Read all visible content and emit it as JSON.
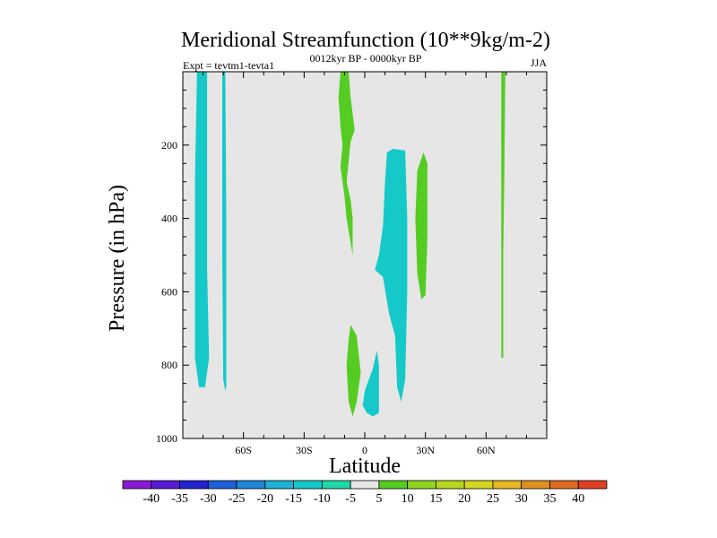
{
  "chart_data": {
    "type": "contour",
    "title": "Meridional Streamfunction (10**9kg/m-2)",
    "left_label": "Expt = tevtm1-tevta1",
    "center_label": "0012kyr BP - 0000kyr BP",
    "right_label": "JJA",
    "xlabel": "Latitude",
    "ylabel": "Pressure (in hPa)",
    "xlim": [
      -90,
      90
    ],
    "ylim": [
      1000,
      0
    ],
    "x_ticks": [
      {
        "value": -60,
        "label": "60S"
      },
      {
        "value": -30,
        "label": "30S"
      },
      {
        "value": 0,
        "label": "0"
      },
      {
        "value": 30,
        "label": "30N"
      },
      {
        "value": 60,
        "label": "60N"
      }
    ],
    "y_ticks": [
      {
        "value": 200,
        "label": "200"
      },
      {
        "value": 400,
        "label": "400"
      },
      {
        "value": 600,
        "label": "600"
      },
      {
        "value": 800,
        "label": "800"
      },
      {
        "value": 1000,
        "label": "1000"
      }
    ],
    "background_color": "#e6e6e6",
    "colorbar": {
      "levels": [
        "-40",
        "-35",
        "-30",
        "-25",
        "-20",
        "-15",
        "-10",
        "-5",
        "5",
        "10",
        "15",
        "20",
        "25",
        "30",
        "35",
        "40"
      ],
      "colors": [
        "#8a1ad6",
        "#5a1ad6",
        "#2222d0",
        "#1f5fd8",
        "#1f86d8",
        "#1fb0d8",
        "#16c9c9",
        "#1fd8a8",
        "#e6e6e6",
        "#55cc22",
        "#8ed61f",
        "#b8d61f",
        "#d6d61f",
        "#e6b81f",
        "#e0901f",
        "#e06a1f",
        "#e0401f"
      ]
    },
    "regions": [
      {
        "level": "-10",
        "color": "#16c9c9",
        "points": [
          [
            -83,
            0
          ],
          [
            -78,
            0
          ],
          [
            -78,
            540
          ],
          [
            -77,
            780
          ],
          [
            -79,
            860
          ],
          [
            -82,
            860
          ],
          [
            -84,
            780
          ],
          [
            -84,
            600
          ],
          [
            -84,
            300
          ]
        ]
      },
      {
        "level": "-10",
        "color": "#16c9c9",
        "points": [
          [
            -70.5,
            0
          ],
          [
            -69,
            0
          ],
          [
            -68.5,
            400
          ],
          [
            -68.5,
            860
          ],
          [
            -69,
            870
          ],
          [
            -70,
            840
          ],
          [
            -70.5,
            500
          ]
        ]
      },
      {
        "level": "10",
        "color": "#55cc22",
        "points": [
          [
            -12,
            0
          ],
          [
            -8,
            0
          ],
          [
            -7,
            70
          ],
          [
            -5,
            160
          ],
          [
            -7,
            190
          ],
          [
            -9,
            300
          ],
          [
            -7,
            350
          ],
          [
            -6,
            400
          ],
          [
            -6,
            500
          ],
          [
            -9,
            400
          ],
          [
            -10,
            340
          ],
          [
            -12,
            260
          ],
          [
            -11,
            200
          ],
          [
            -12,
            150
          ],
          [
            -13,
            70
          ]
        ]
      },
      {
        "level": "-10",
        "color": "#16c9c9",
        "points": [
          [
            11,
            220
          ],
          [
            14,
            210
          ],
          [
            20,
            215
          ],
          [
            21,
            400
          ],
          [
            21,
            600
          ],
          [
            20,
            840
          ],
          [
            18,
            900
          ],
          [
            16,
            860
          ],
          [
            15,
            720
          ],
          [
            12,
            660
          ],
          [
            9,
            560
          ],
          [
            5,
            540
          ],
          [
            7,
            500
          ],
          [
            9,
            420
          ],
          [
            10,
            300
          ]
        ]
      },
      {
        "level": "10",
        "color": "#55cc22",
        "points": [
          [
            29,
            220
          ],
          [
            31,
            250
          ],
          [
            31,
            450
          ],
          [
            30,
            610
          ],
          [
            28,
            620
          ],
          [
            26,
            550
          ],
          [
            25,
            400
          ],
          [
            26,
            270
          ]
        ]
      },
      {
        "level": "10",
        "color": "#55cc22",
        "points": [
          [
            -7,
            690
          ],
          [
            -4,
            720
          ],
          [
            -2,
            820
          ],
          [
            -4,
            900
          ],
          [
            -6,
            940
          ],
          [
            -8,
            900
          ],
          [
            -9,
            800
          ],
          [
            -8,
            730
          ]
        ]
      },
      {
        "level": "-10",
        "color": "#16c9c9",
        "points": [
          [
            6,
            760
          ],
          [
            7,
            800
          ],
          [
            7,
            930
          ],
          [
            4,
            940
          ],
          [
            1,
            930
          ],
          [
            -1,
            910
          ],
          [
            0,
            870
          ],
          [
            4,
            810
          ]
        ]
      },
      {
        "level": "10",
        "color": "#55cc22",
        "points": [
          [
            67.5,
            0
          ],
          [
            69.5,
            0
          ],
          [
            69,
            300
          ],
          [
            68.5,
            500
          ],
          [
            68.5,
            780
          ],
          [
            67.5,
            780
          ],
          [
            67.5,
            400
          ]
        ]
      }
    ]
  }
}
